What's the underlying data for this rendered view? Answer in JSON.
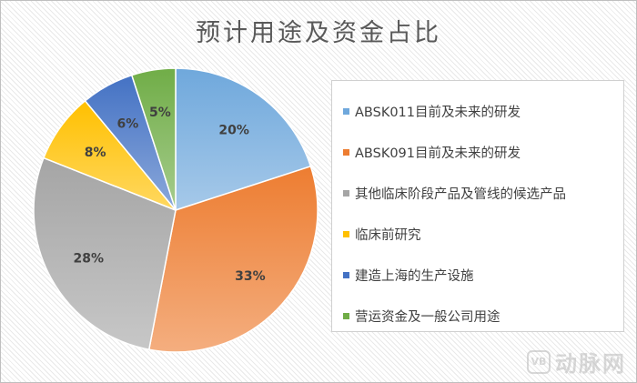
{
  "chart_data": {
    "type": "pie",
    "title": "预计用途及资金占比",
    "slices": [
      {
        "label": "ABSK011目前及未来的研发",
        "value": 20,
        "display": "20%",
        "color": "#6fa8dc"
      },
      {
        "label": "ABSK091目前及未来的研发",
        "value": 33,
        "display": "33%",
        "color": "#ed7d31"
      },
      {
        "label": "其他临床阶段产品及管线的候选产品",
        "value": 28,
        "display": "28%",
        "color": "#a5a5a5"
      },
      {
        "label": "临床前研究",
        "value": 8,
        "display": "8%",
        "color": "#ffc000"
      },
      {
        "label": "建造上海的生产设施",
        "value": 6,
        "display": "6%",
        "color": "#4472c4"
      },
      {
        "label": "营运资金及一般公司用途",
        "value": 5,
        "display": "5%",
        "color": "#70ad47"
      }
    ],
    "legend_position": "right",
    "start_angle": "top",
    "direction": "clockwise"
  },
  "watermark": {
    "logo": "VB",
    "text": "动脉网"
  }
}
